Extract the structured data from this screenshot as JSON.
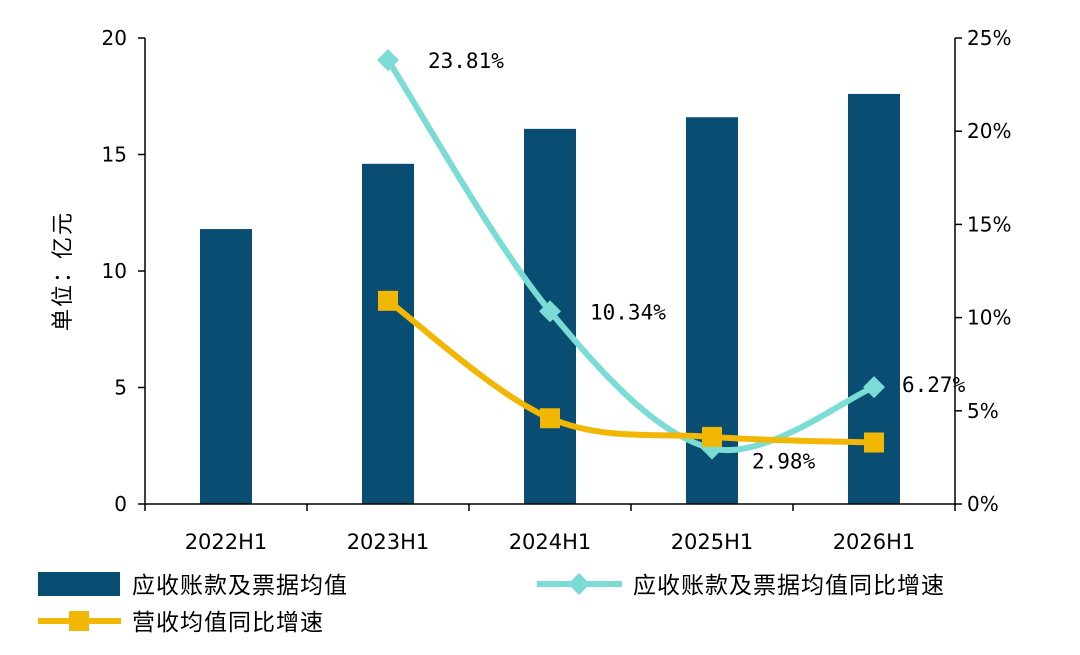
{
  "chart_data": {
    "type": "bar",
    "categories": [
      "2022H1",
      "2023H1",
      "2024H1",
      "2025H1",
      "2026H1"
    ],
    "ylabel": "单位：亿元",
    "ylim": [
      0,
      20
    ],
    "yticks": [
      "0",
      "5",
      "10",
      "15",
      "20"
    ],
    "y2lim": [
      0,
      25
    ],
    "y2ticks": [
      "0%",
      "5%",
      "10%",
      "15%",
      "20%",
      "25%"
    ],
    "grid": false,
    "legend_position": "bottom",
    "series": [
      {
        "name": "应收账款及票据均值",
        "type": "bar",
        "axis": "left",
        "color": "#0a4d73",
        "values": [
          11.8,
          14.6,
          16.1,
          16.6,
          17.6
        ]
      },
      {
        "name": "应收账款及票据均值同比增速",
        "type": "line",
        "axis": "right",
        "color": "#7adcd4",
        "marker": "diamond",
        "values": [
          null,
          23.81,
          10.34,
          2.98,
          6.27
        ],
        "labels": [
          "",
          "23.81%",
          "10.34%",
          "2.98%",
          "6.27%"
        ]
      },
      {
        "name": "营收均值同比增速",
        "type": "line",
        "axis": "right",
        "color": "#f2b705",
        "marker": "square",
        "values": [
          null,
          10.9,
          4.6,
          3.6,
          3.3
        ]
      }
    ]
  }
}
